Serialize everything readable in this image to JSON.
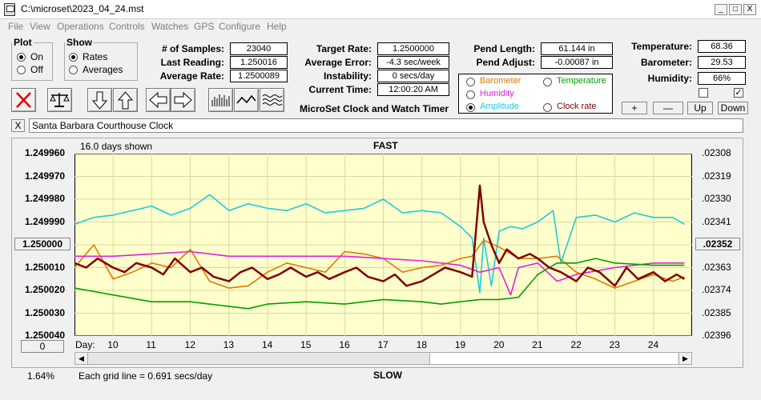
{
  "window": {
    "title": "C:\\microset\\2023_04_24.mst",
    "minimize": "_",
    "maximize": "□",
    "close": "X"
  },
  "menu": [
    "File",
    "View",
    "Operations",
    "Controls",
    "Watches",
    "GPS",
    "Configure",
    "Help"
  ],
  "plot_group": {
    "legend": "Plot",
    "on": "On",
    "off": "Off",
    "selected": "On"
  },
  "show_group": {
    "legend": "Show",
    "rates": "Rates",
    "averages": "Averages",
    "selected": "Rates"
  },
  "stats": {
    "samples_label": "# of Samples:",
    "samples": "23040",
    "last_label": "Last Reading:",
    "last": "1.250016",
    "avg_label": "Average Rate:",
    "avg": "1.2500089"
  },
  "target": {
    "target_label": "Target Rate:",
    "target": "1.2500000",
    "avgerr_label": "Average Error:",
    "avgerr": "-4.3 sec/week",
    "instab_label": "Instability:",
    "instab": "0 secs/day",
    "time_label": "Current Time:",
    "time": "12:00:20 AM"
  },
  "app_caption": "MicroSet Clock and Watch Timer",
  "pendulum": {
    "len_label": "Pend Length:",
    "len": "61.144 in",
    "adj_label": "Pend Adjust:",
    "adj": "-0.00087 in"
  },
  "sensors": {
    "temp_label": "Temperature:",
    "temp": "68.36",
    "baro_label": "Barometer:",
    "baro": "29.53",
    "hum_label": "Humidity:",
    "hum": "66%"
  },
  "overlay_options": {
    "barometer": "Barometer",
    "temperature": "Temperature",
    "humidity": "Humidity",
    "amplitude": "Amplitude",
    "clock_rate": "Clock rate",
    "selected": "Amplitude",
    "colors": {
      "barometer": "#e07800",
      "temperature": "#00a000",
      "humidity": "#e020e0",
      "amplitude": "#20c8e0",
      "clock_rate": "#800000"
    }
  },
  "adjust_buttons": {
    "plus": "+",
    "minus": "—",
    "up": "Up",
    "down": "Down"
  },
  "checkboxes": {
    "left": "",
    "right": "✓"
  },
  "clock_name": "Santa Barbara Courthouse Clock",
  "clear_button": "X",
  "plot": {
    "days_shown": "16.0 days shown",
    "top_label": "FAST",
    "bottom_label": "SLOW",
    "grid_note": "Each grid line = 0.691 secs/day",
    "left_zero": "0",
    "center_button": "1.250000",
    "right_center_button": ".02352",
    "pct": "1.64%",
    "day_label": "Day:"
  },
  "chart_data": {
    "type": "line",
    "y_left_ticks": [
      "1.249960",
      "1.249970",
      "1.249980",
      "1.249990",
      "1.250000",
      "1.250010",
      "1.250020",
      "1.250030",
      "1.250040"
    ],
    "y_right_ticks": [
      ".02308",
      ".02319",
      ".02330",
      ".02341",
      ".02352",
      ".02363",
      ".02374",
      ".02385",
      ".02396"
    ],
    "x_ticks": [
      "10",
      "11",
      "12",
      "13",
      "14",
      "15",
      "16",
      "17",
      "18",
      "19",
      "20",
      "21",
      "22",
      "23",
      "24"
    ],
    "x_range": [
      9.0,
      25.0
    ],
    "ylim": [
      1.24996,
      1.25004
    ],
    "series": [
      {
        "name": "Amplitude",
        "color": "#20c8e0",
        "x": [
          9.0,
          9.5,
          10.0,
          10.5,
          11.0,
          11.5,
          12.0,
          12.5,
          13.0,
          13.5,
          14.0,
          14.5,
          15.0,
          15.5,
          16.0,
          16.5,
          17.0,
          17.5,
          18.0,
          18.5,
          19.0,
          19.3,
          19.5,
          19.6,
          19.8,
          20.0,
          20.3,
          20.6,
          21.0,
          21.4,
          21.6,
          22.0,
          22.5,
          23.0,
          23.5,
          24.0,
          24.5,
          24.8
        ],
        "y": [
          1.249991,
          1.249988,
          1.249987,
          1.249985,
          1.249983,
          1.249987,
          1.249984,
          1.249978,
          1.249985,
          1.249982,
          1.249984,
          1.249985,
          1.249982,
          1.249986,
          1.249985,
          1.249984,
          1.24998,
          1.249986,
          1.249985,
          1.249986,
          1.249992,
          1.249997,
          1.250021,
          1.249997,
          1.250018,
          1.249994,
          1.249992,
          1.249993,
          1.24999,
          1.249985,
          1.250008,
          1.249988,
          1.249987,
          1.24999,
          1.249986,
          1.249988,
          1.249988,
          1.249991
        ]
      },
      {
        "name": "Barometer",
        "color": "#e07800",
        "x": [
          9.0,
          9.5,
          10.0,
          10.5,
          11.0,
          11.5,
          12.0,
          12.5,
          13.0,
          13.5,
          14.0,
          14.5,
          15.0,
          15.5,
          16.0,
          16.5,
          17.0,
          17.5,
          18.0,
          18.5,
          19.0,
          19.3,
          19.6,
          20.0,
          20.5,
          21.0,
          21.5,
          22.0,
          22.5,
          23.0,
          23.5,
          24.0,
          24.5,
          24.8
        ],
        "y": [
          1.25001,
          1.25,
          1.250015,
          1.250012,
          1.250008,
          1.25001,
          1.250002,
          1.250016,
          1.250019,
          1.250018,
          1.250012,
          1.250008,
          1.25001,
          1.250012,
          1.250003,
          1.250004,
          1.250006,
          1.250012,
          1.25001,
          1.250009,
          1.250006,
          1.250005,
          1.249998,
          1.250001,
          1.250006,
          1.250006,
          1.250005,
          1.250012,
          1.250015,
          1.250019,
          1.250016,
          1.250013,
          1.250016,
          1.250014
        ]
      },
      {
        "name": "Humidity",
        "color": "#e020e0",
        "x": [
          9.0,
          10.0,
          11.0,
          12.0,
          13.0,
          14.0,
          15.0,
          16.0,
          17.0,
          18.0,
          19.0,
          19.5,
          20.0,
          20.3,
          20.5,
          21.0,
          21.5,
          22.0,
          23.0,
          24.0,
          24.8
        ],
        "y": [
          1.250005,
          1.250005,
          1.250004,
          1.250003,
          1.250005,
          1.250005,
          1.250005,
          1.250005,
          1.250006,
          1.250007,
          1.250009,
          1.250012,
          1.25001,
          1.250022,
          1.25001,
          1.250008,
          1.250016,
          1.250013,
          1.25001,
          1.250008,
          1.250008
        ]
      },
      {
        "name": "Temperature",
        "color": "#00a000",
        "x": [
          9.0,
          10.0,
          11.0,
          12.0,
          13.0,
          13.5,
          14.0,
          15.0,
          16.0,
          17.0,
          18.0,
          18.5,
          19.0,
          19.5,
          20.0,
          20.5,
          21.0,
          21.5,
          22.0,
          22.5,
          23.0,
          24.0,
          24.8
        ],
        "y": [
          1.250019,
          1.250022,
          1.250025,
          1.250025,
          1.250027,
          1.250028,
          1.250026,
          1.250025,
          1.250026,
          1.250024,
          1.250025,
          1.250026,
          1.250025,
          1.250024,
          1.250024,
          1.250023,
          1.250013,
          1.250008,
          1.250008,
          1.250006,
          1.250008,
          1.250009,
          1.250009
        ]
      },
      {
        "name": "Clock rate",
        "color": "#800000",
        "x": [
          9.0,
          9.3,
          9.6,
          10.0,
          10.3,
          10.6,
          11.0,
          11.3,
          11.6,
          12.0,
          12.3,
          12.6,
          13.0,
          13.3,
          13.6,
          14.0,
          14.3,
          14.6,
          15.0,
          15.3,
          15.6,
          16.0,
          16.3,
          16.6,
          17.0,
          17.3,
          17.6,
          18.0,
          18.3,
          18.6,
          19.0,
          19.3,
          19.5,
          19.6,
          19.8,
          20.0,
          20.2,
          20.5,
          20.8,
          21.0,
          21.3,
          21.6,
          22.0,
          22.3,
          22.6,
          23.0,
          23.3,
          23.6,
          24.0,
          24.3,
          24.6,
          24.8
        ],
        "y": [
          1.250008,
          1.25001,
          1.250006,
          1.25001,
          1.250012,
          1.250008,
          1.25001,
          1.250013,
          1.250006,
          1.250012,
          1.25001,
          1.250014,
          1.250016,
          1.250012,
          1.25001,
          1.250015,
          1.250013,
          1.25001,
          1.250014,
          1.250012,
          1.250015,
          1.250012,
          1.25001,
          1.250014,
          1.250016,
          1.250013,
          1.250018,
          1.250016,
          1.250013,
          1.25001,
          1.250012,
          1.250014,
          1.249974,
          1.24999,
          1.25,
          1.250008,
          1.250002,
          1.250006,
          1.250004,
          1.250006,
          1.25001,
          1.250012,
          1.250016,
          1.25001,
          1.250012,
          1.250018,
          1.25001,
          1.250015,
          1.250012,
          1.250016,
          1.250013,
          1.250015
        ]
      }
    ]
  }
}
